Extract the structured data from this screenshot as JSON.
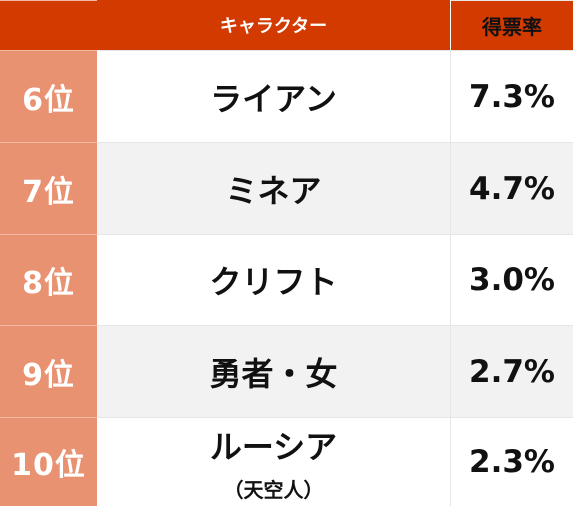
{
  "header": {
    "character_label": "キャラクター",
    "score_label": "得票率"
  },
  "rows": [
    {
      "rank": "6位",
      "name": "ライアン",
      "sub": "",
      "score": "7.3%"
    },
    {
      "rank": "7位",
      "name": "ミネア",
      "sub": "",
      "score": "4.7%"
    },
    {
      "rank": "8位",
      "name": "クリフト",
      "sub": "",
      "score": "3.0%"
    },
    {
      "rank": "9位",
      "name": "勇者・女",
      "sub": "",
      "score": "2.7%"
    },
    {
      "rank": "10位",
      "name": "ルーシア",
      "sub": "（天空人）",
      "score": "2.3%"
    }
  ],
  "colors": {
    "header_bg": "#d33a00",
    "rank_bg": "#e89272",
    "alt_row_bg": "#f2f2f2"
  }
}
